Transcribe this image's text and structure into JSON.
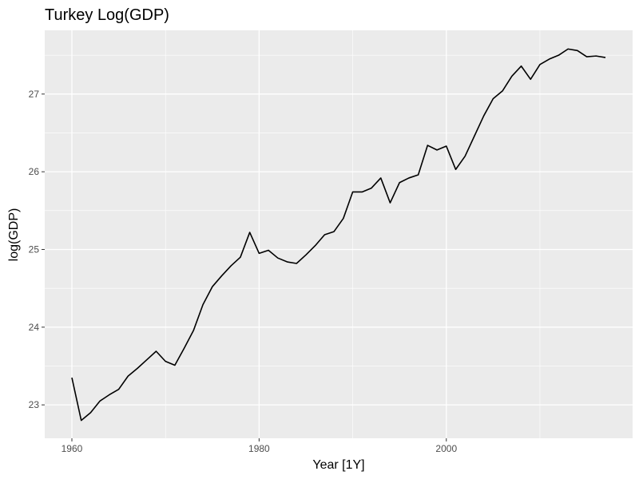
{
  "chart_data": {
    "type": "line",
    "title": "Turkey Log(GDP)",
    "xlabel": "Year [1Y]",
    "ylabel": "log(GDP)",
    "xlim": [
      1957.1,
      2019.9
    ],
    "ylim": [
      22.57,
      27.82
    ],
    "xticks": [
      1960,
      1980,
      2000
    ],
    "xticks_minor": [
      1970,
      1990,
      2010
    ],
    "yticks": [
      23,
      24,
      25,
      26,
      27
    ],
    "yticks_minor": [
      23.5,
      24.5,
      25.5,
      26.5,
      27.5
    ],
    "grid": true,
    "series": [
      {
        "name": "log(GDP)",
        "color": "#000000",
        "x": [
          1960,
          1961,
          1962,
          1963,
          1964,
          1965,
          1966,
          1967,
          1968,
          1969,
          1970,
          1971,
          1972,
          1973,
          1974,
          1975,
          1976,
          1977,
          1978,
          1979,
          1980,
          1981,
          1982,
          1983,
          1984,
          1985,
          1986,
          1987,
          1988,
          1989,
          1990,
          1991,
          1992,
          1993,
          1994,
          1995,
          1996,
          1997,
          1998,
          1999,
          2000,
          2001,
          2002,
          2003,
          2004,
          2005,
          2006,
          2007,
          2008,
          2009,
          2010,
          2011,
          2012,
          2013,
          2014,
          2015,
          2016,
          2017
        ],
        "values": [
          23.35,
          22.8,
          22.9,
          23.05,
          23.13,
          23.2,
          23.37,
          23.47,
          23.58,
          23.69,
          23.56,
          23.51,
          23.73,
          23.96,
          24.29,
          24.52,
          24.66,
          24.79,
          24.9,
          25.22,
          24.95,
          24.99,
          24.89,
          24.84,
          24.82,
          24.93,
          25.05,
          25.19,
          25.23,
          25.4,
          25.74,
          25.74,
          25.79,
          25.92,
          25.6,
          25.86,
          25.92,
          25.96,
          26.34,
          26.28,
          26.33,
          26.03,
          26.2,
          26.46,
          26.72,
          26.94,
          27.04,
          27.23,
          27.36,
          27.19,
          27.38,
          27.45,
          27.5,
          27.58,
          27.56,
          27.48,
          27.49,
          27.47
        ]
      }
    ]
  }
}
